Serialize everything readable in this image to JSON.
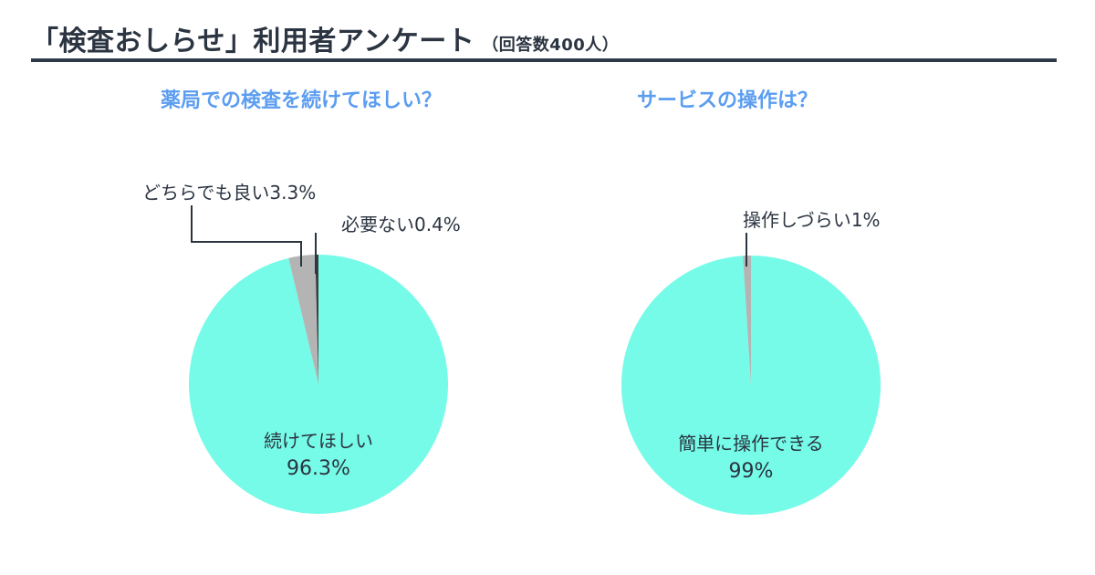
{
  "header": {
    "title": "「検査おしらせ」利用者アンケート",
    "subtitle": "（回答数400人）"
  },
  "colors": {
    "main_slice": "#76fbe8",
    "minor_slice": "#b4b4b4",
    "tiny_slice": "#3d3d3d",
    "question": "#5b9df0",
    "text": "#2b3441"
  },
  "chart_data": [
    {
      "type": "pie",
      "title": "薬局での検査を続けてほしい？",
      "slices": [
        {
          "label": "続けてほしい",
          "value": 96.3,
          "value_label": "96.3%"
        },
        {
          "label": "どちらでも良い",
          "value": 3.3,
          "value_label": "3.3%"
        },
        {
          "label": "必要ない",
          "value": 0.4,
          "value_label": "0.4%"
        }
      ]
    },
    {
      "type": "pie",
      "title": "サービスの操作は？",
      "slices": [
        {
          "label": "簡単に操作できる",
          "value": 99,
          "value_label": "99%"
        },
        {
          "label": "操作しづらい",
          "value": 1,
          "value_label": "1%"
        }
      ]
    }
  ]
}
